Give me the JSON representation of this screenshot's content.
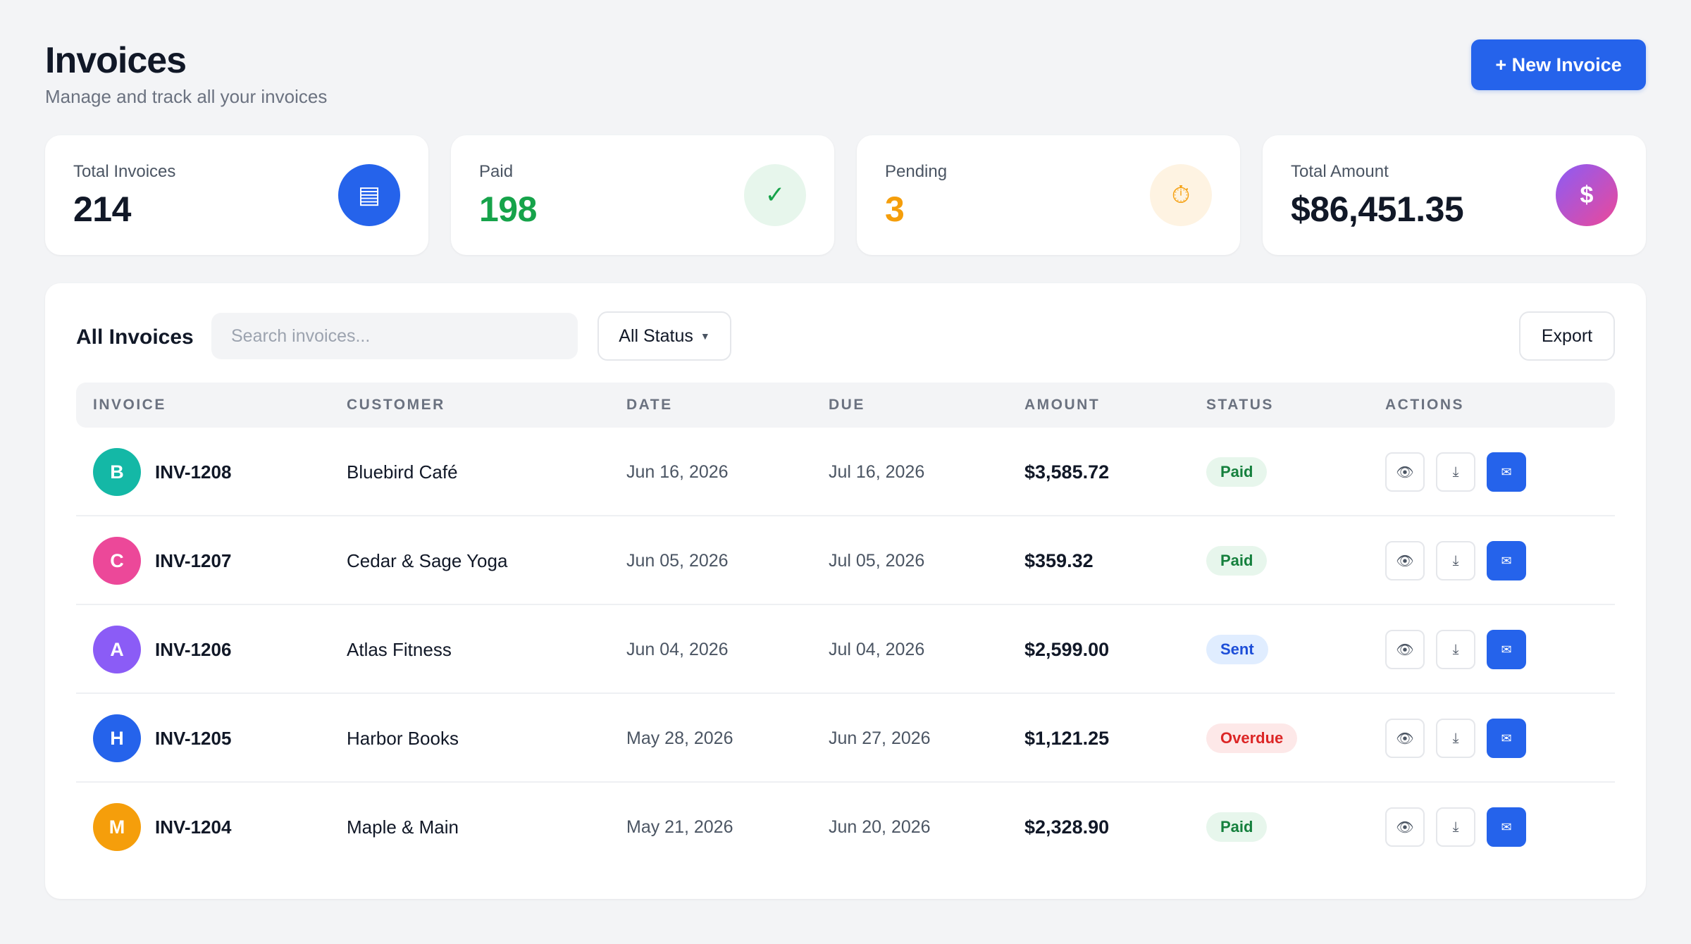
{
  "header": {
    "title": "Invoices",
    "subtitle": "Manage and track all your invoices",
    "new_button": "+ New Invoice"
  },
  "stats": [
    {
      "label": "Total Invoices",
      "value": "214",
      "icon": "document-icon",
      "glyph": "▤"
    },
    {
      "label": "Paid",
      "value": "198",
      "icon": "check-icon",
      "glyph": "✓"
    },
    {
      "label": "Pending",
      "value": "3",
      "icon": "clock-icon",
      "glyph": "⏱"
    },
    {
      "label": "Total Amount",
      "value": "$86,451.35",
      "icon": "dollar-icon",
      "glyph": "$"
    }
  ],
  "table": {
    "title": "All Invoices",
    "search_placeholder": "Search invoices...",
    "status_filter": "All Status",
    "export_label": "Export",
    "columns": [
      "INVOICE",
      "CUSTOMER",
      "DATE",
      "DUE",
      "AMOUNT",
      "STATUS",
      "ACTIONS"
    ],
    "rows": [
      {
        "initial": "B",
        "avatar_color": "#14b8a6",
        "id": "INV-1208",
        "customer": "Bluebird Café",
        "date": "Jun 16, 2026",
        "due": "Jul 16, 2026",
        "amount": "$3,585.72",
        "status": "Paid",
        "status_kind": "paid"
      },
      {
        "initial": "C",
        "avatar_color": "#ec4899",
        "id": "INV-1207",
        "customer": "Cedar & Sage Yoga",
        "date": "Jun 05, 2026",
        "due": "Jul 05, 2026",
        "amount": "$359.32",
        "status": "Paid",
        "status_kind": "paid"
      },
      {
        "initial": "A",
        "avatar_color": "#8b5cf6",
        "id": "INV-1206",
        "customer": "Atlas Fitness",
        "date": "Jun 04, 2026",
        "due": "Jul 04, 2026",
        "amount": "$2,599.00",
        "status": "Sent",
        "status_kind": "sent"
      },
      {
        "initial": "H",
        "avatar_color": "#2563eb",
        "id": "INV-1205",
        "customer": "Harbor Books",
        "date": "May 28, 2026",
        "due": "Jun 27, 2026",
        "amount": "$1,121.25",
        "status": "Overdue",
        "status_kind": "overdue"
      },
      {
        "initial": "M",
        "avatar_color": "#f59e0b",
        "id": "INV-1204",
        "customer": "Maple & Main",
        "date": "May 21, 2026",
        "due": "Jun 20, 2026",
        "amount": "$2,328.90",
        "status": "Paid",
        "status_kind": "paid"
      }
    ],
    "row_actions": [
      {
        "icon": "view-icon",
        "glyph": "👁"
      },
      {
        "icon": "download-icon",
        "glyph": "⤓"
      },
      {
        "icon": "send-email-icon",
        "glyph": "✉"
      }
    ]
  },
  "colors": {
    "accent": "#2563eb",
    "paid": "#16a34a",
    "pending": "#f59e0b",
    "overdue": "#dc2626"
  }
}
